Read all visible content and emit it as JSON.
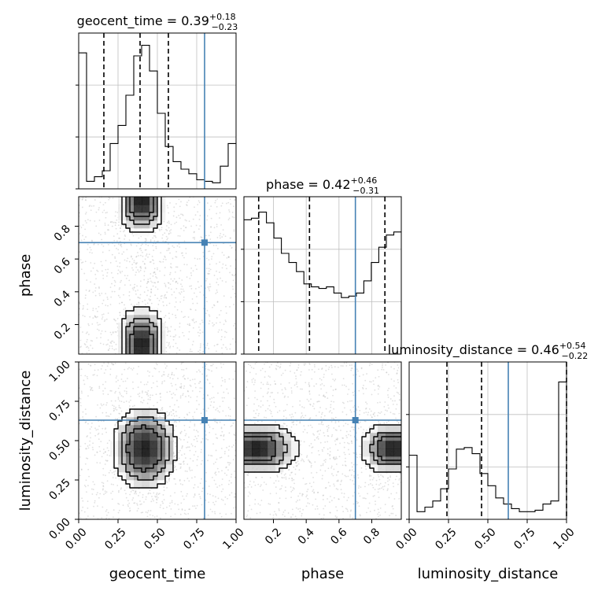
{
  "chart_data": {
    "type": "corner",
    "parameters": [
      {
        "name": "geocent_time",
        "range": [
          0.0,
          1.0
        ],
        "ticks": [
          "0.00",
          "0.25",
          "0.50",
          "0.75",
          "1.00"
        ],
        "tick_values": [
          0,
          0.25,
          0.5,
          0.75,
          1.0
        ]
      },
      {
        "name": "phase",
        "range": [
          0.02,
          0.98
        ],
        "ticks": [
          "0.2",
          "0.4",
          "0.6",
          "0.8"
        ],
        "tick_values": [
          0.2,
          0.4,
          0.6,
          0.8
        ]
      },
      {
        "name": "luminosity_distance",
        "range": [
          0.0,
          1.0
        ],
        "ticks": [
          "0.00",
          "0.25",
          "0.50",
          "0.75",
          "1.00"
        ],
        "tick_values": [
          0,
          0.25,
          0.5,
          0.75,
          1.0
        ]
      }
    ],
    "titles": [
      {
        "text": "geocent_time = 0.39",
        "plus": "+0.18",
        "minus": "−0.23"
      },
      {
        "text": "phase = 0.42",
        "plus": "+0.46",
        "minus": "−0.31"
      },
      {
        "text": "luminosity_distance = 0.46",
        "plus": "+0.54",
        "minus": "−0.22"
      }
    ],
    "truths": [
      0.8,
      0.7,
      0.63
    ],
    "quantiles": [
      [
        0.16,
        0.39,
        0.57
      ],
      [
        0.11,
        0.42,
        0.88
      ],
      [
        0.24,
        0.46,
        1.0
      ]
    ],
    "histograms": [
      {
        "edges_min": 0.0,
        "edges_max": 1.0,
        "counts": [
          0.9,
          0.05,
          0.08,
          0.12,
          0.3,
          0.42,
          0.62,
          0.88,
          0.95,
          0.78,
          0.5,
          0.28,
          0.18,
          0.13,
          0.1,
          0.06,
          0.05,
          0.04,
          0.15,
          0.3
        ]
      },
      {
        "edges_min": 0.02,
        "edges_max": 0.98,
        "counts": [
          0.88,
          0.89,
          0.93,
          0.86,
          0.76,
          0.66,
          0.6,
          0.54,
          0.46,
          0.44,
          0.43,
          0.44,
          0.4,
          0.37,
          0.38,
          0.4,
          0.48,
          0.6,
          0.7,
          0.78,
          0.8
        ]
      },
      {
        "edges_min": 0.0,
        "edges_max": 1.0,
        "counts": [
          0.42,
          0.05,
          0.08,
          0.12,
          0.2,
          0.33,
          0.46,
          0.47,
          0.43,
          0.3,
          0.22,
          0.14,
          0.1,
          0.07,
          0.05,
          0.05,
          0.06,
          0.1,
          0.12,
          0.9
        ]
      }
    ],
    "grid": true
  }
}
